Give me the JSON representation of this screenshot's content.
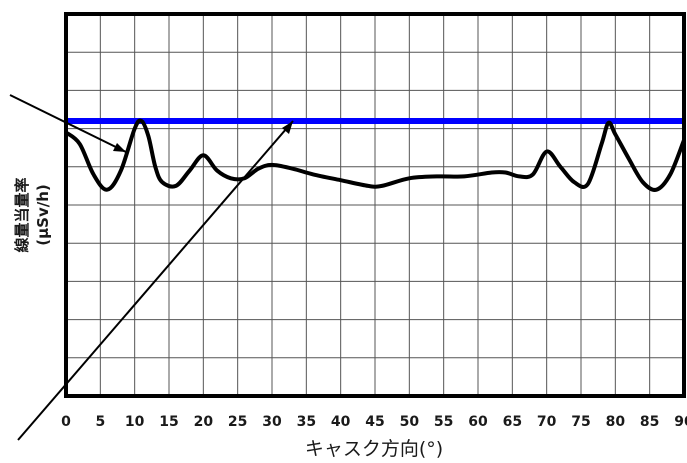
{
  "chart_data": {
    "type": "line",
    "title": "",
    "xlabel": "キャスク方向(°)",
    "ylabel": "線量当量率",
    "ylabel_unit": "(μSv/h)",
    "xlim": [
      0,
      90
    ],
    "x_ticks": [
      0,
      5,
      10,
      15,
      20,
      25,
      30,
      35,
      40,
      45,
      50,
      55,
      60,
      65,
      70,
      75,
      80,
      85,
      90
    ],
    "ylim": [
      0,
      10
    ],
    "grid": true,
    "legend": "none",
    "series": [
      {
        "color": "#0000ff",
        "style": "horizontal-line",
        "x": [
          0,
          90
        ],
        "y": [
          7.2,
          7.2
        ]
      },
      {
        "color": "#000000",
        "x": [
          0,
          2,
          4,
          6,
          8,
          10,
          11,
          12,
          13,
          14,
          16,
          18,
          20,
          22,
          24,
          26,
          28,
          30,
          33,
          36,
          40,
          44,
          46,
          50,
          54,
          58,
          62,
          64,
          66,
          68,
          70,
          72,
          74,
          76,
          78,
          79,
          80,
          82,
          84,
          86,
          88,
          90
        ],
        "y": [
          6.9,
          6.6,
          5.8,
          5.4,
          5.9,
          7.0,
          7.2,
          6.8,
          6.0,
          5.6,
          5.5,
          5.9,
          6.3,
          5.9,
          5.7,
          5.7,
          5.95,
          6.05,
          5.95,
          5.8,
          5.65,
          5.5,
          5.5,
          5.7,
          5.75,
          5.75,
          5.85,
          5.85,
          5.75,
          5.8,
          6.4,
          6.0,
          5.6,
          5.55,
          6.6,
          7.15,
          6.85,
          6.2,
          5.6,
          5.4,
          5.8,
          6.7
        ]
      }
    ]
  }
}
